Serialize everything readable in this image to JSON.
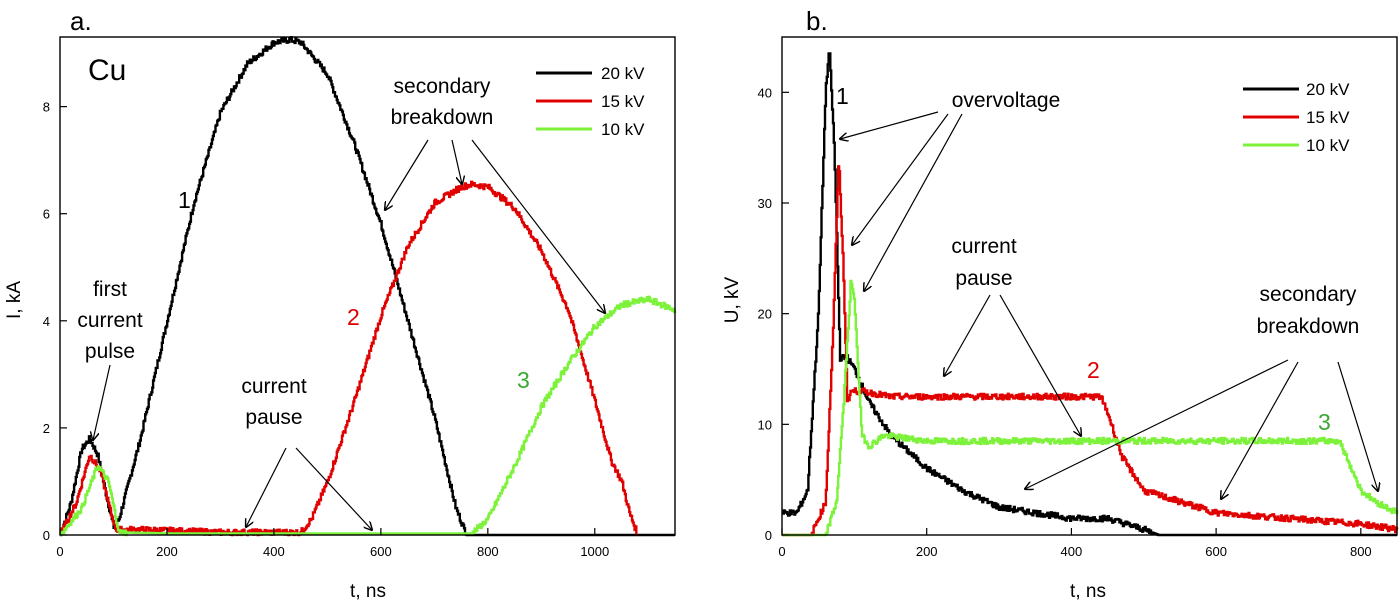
{
  "colors": {
    "black": "#000000",
    "red": "#e00000",
    "green": "#7cf23a",
    "green_text": "#3aa832"
  },
  "chart_data": [
    {
      "panel": "a.",
      "type": "line",
      "material": "Cu",
      "xlabel": "t, ns",
      "ylabel": "I, kA",
      "xlim": [
        0,
        1150
      ],
      "ylim": [
        0,
        9.3
      ],
      "xticks": [
        "0",
        "200",
        "400",
        "600",
        "800",
        "1000"
      ],
      "yticks": [
        "0",
        "2",
        "4",
        "6",
        "8"
      ],
      "grid": false,
      "legend_position": "top-right",
      "series": [
        {
          "name": "20 kV",
          "curve_label": "1",
          "color": "#000000",
          "x": [
            0,
            20,
            40,
            55,
            70,
            85,
            100,
            110,
            150,
            200,
            250,
            300,
            350,
            400,
            430,
            450,
            500,
            550,
            600,
            650,
            700,
            740,
            760,
            1150
          ],
          "y": [
            0,
            0.6,
            1.6,
            1.8,
            1.5,
            0.8,
            0.15,
            0.3,
            1.8,
            4.0,
            6.2,
            7.9,
            8.8,
            9.2,
            9.25,
            9.2,
            8.6,
            7.3,
            5.8,
            4.0,
            2.2,
            0.5,
            0,
            0
          ]
        },
        {
          "name": "15 kV",
          "curve_label": "2",
          "color": "#e00000",
          "x": [
            0,
            30,
            55,
            75,
            95,
            105,
            150,
            300,
            450,
            470,
            500,
            550,
            600,
            650,
            700,
            750,
            770,
            800,
            850,
            900,
            950,
            1000,
            1030,
            1050,
            1065,
            1080
          ],
          "y": [
            0,
            0.6,
            1.5,
            1.2,
            0.4,
            0.1,
            0.1,
            0.05,
            0.05,
            0.3,
            1.0,
            2.5,
            4.1,
            5.4,
            6.2,
            6.5,
            6.55,
            6.5,
            6.1,
            5.3,
            4.2,
            2.5,
            1.4,
            1.0,
            0.4,
            0
          ]
        },
        {
          "name": "10 kV",
          "curve_label": "3",
          "color": "#7cf23a",
          "x": [
            0,
            40,
            70,
            90,
            110,
            200,
            400,
            600,
            770,
            800,
            850,
            900,
            950,
            1000,
            1050,
            1100,
            1150
          ],
          "y": [
            0,
            0.5,
            1.3,
            1.0,
            0.05,
            0.03,
            0.03,
            0.03,
            0.03,
            0.3,
            1.3,
            2.4,
            3.2,
            3.9,
            4.3,
            4.4,
            4.2
          ]
        }
      ],
      "annotations": [
        "first",
        "current",
        "pulse",
        "secondary",
        "breakdown",
        "current",
        "pause"
      ]
    },
    {
      "panel": "b.",
      "type": "line",
      "xlabel": "t, ns",
      "ylabel": "U, kV",
      "xlim": [
        0,
        850
      ],
      "ylim": [
        0,
        45
      ],
      "xticks": [
        "0",
        "200",
        "400",
        "600",
        "800"
      ],
      "yticks": [
        "0",
        "10",
        "20",
        "30",
        "40"
      ],
      "grid": false,
      "legend_position": "top-right",
      "series": [
        {
          "name": "20 kV",
          "curve_label": "1",
          "color": "#000000",
          "x": [
            0,
            20,
            35,
            50,
            60,
            65,
            72,
            80,
            90,
            100,
            120,
            150,
            200,
            250,
            300,
            350,
            400,
            450,
            500,
            520,
            850
          ],
          "y": [
            2,
            2,
            4,
            20,
            40,
            44,
            35,
            16,
            16,
            15,
            12,
            9,
            6,
            4,
            2.5,
            2,
            1.5,
            1.5,
            0.5,
            0,
            0
          ]
        },
        {
          "name": "15 kV",
          "curve_label": "2",
          "color": "#e00000",
          "x": [
            0,
            40,
            60,
            70,
            78,
            84,
            90,
            95,
            110,
            150,
            200,
            300,
            400,
            440,
            450,
            470,
            500,
            550,
            600,
            700,
            800,
            850
          ],
          "y": [
            0,
            0,
            3,
            18,
            34,
            25,
            12,
            13,
            13,
            12.5,
            12.5,
            12.5,
            12.5,
            12.5,
            11,
            7,
            4,
            3,
            2,
            1.5,
            1,
            0.5
          ]
        },
        {
          "name": "10 kV",
          "curve_label": "3",
          "color": "#7cf23a",
          "x": [
            0,
            60,
            75,
            85,
            95,
            100,
            110,
            120,
            140,
            200,
            300,
            400,
            500,
            600,
            700,
            770,
            780,
            800,
            820,
            850
          ],
          "y": [
            0,
            0,
            3,
            12,
            23,
            21,
            9,
            8,
            9,
            8.5,
            8.5,
            8.5,
            8.5,
            8.5,
            8.5,
            8.5,
            7,
            4,
            3,
            2
          ]
        }
      ],
      "annotations": [
        "overvoltage",
        "current",
        "pause",
        "secondary",
        "breakdown"
      ]
    }
  ]
}
